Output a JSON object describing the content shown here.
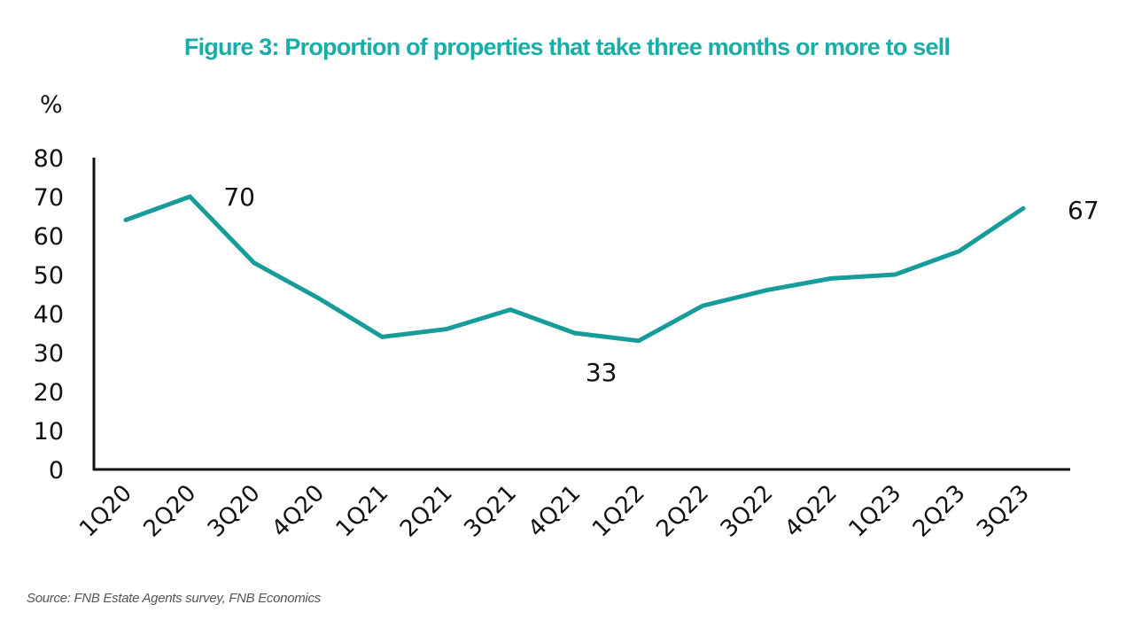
{
  "chart_data": {
    "type": "line",
    "title": "Figure 3: Proportion of properties that take three months or more to sell",
    "ylabel": "%",
    "xlabel": "",
    "ylim": [
      0,
      80
    ],
    "yticks": [
      "0",
      "10",
      "20",
      "30",
      "40",
      "50",
      "60",
      "70",
      "80"
    ],
    "ytick_values": [
      0,
      10,
      20,
      30,
      40,
      50,
      60,
      70,
      80
    ],
    "categories": [
      "1Q20",
      "2Q20",
      "3Q20",
      "4Q20",
      "1Q21",
      "2Q21",
      "3Q21",
      "4Q21",
      "1Q22",
      "2Q22",
      "3Q22",
      "4Q22",
      "1Q23",
      "2Q23",
      "3Q23"
    ],
    "series": [
      {
        "name": "Proportion of properties taking 3+ months to sell",
        "color": "#179c9b",
        "values": [
          64,
          70,
          53,
          44,
          34,
          36,
          41,
          35,
          33,
          42,
          46,
          49,
          50,
          56,
          67
        ]
      }
    ],
    "annotations": [
      {
        "category": "2Q20",
        "text": "70"
      },
      {
        "category": "1Q22",
        "text": "33"
      },
      {
        "category": "3Q23",
        "text": "67"
      }
    ],
    "grid": false,
    "legend": "none",
    "source": "Source: FNB Estate Agents survey, FNB Economics"
  }
}
